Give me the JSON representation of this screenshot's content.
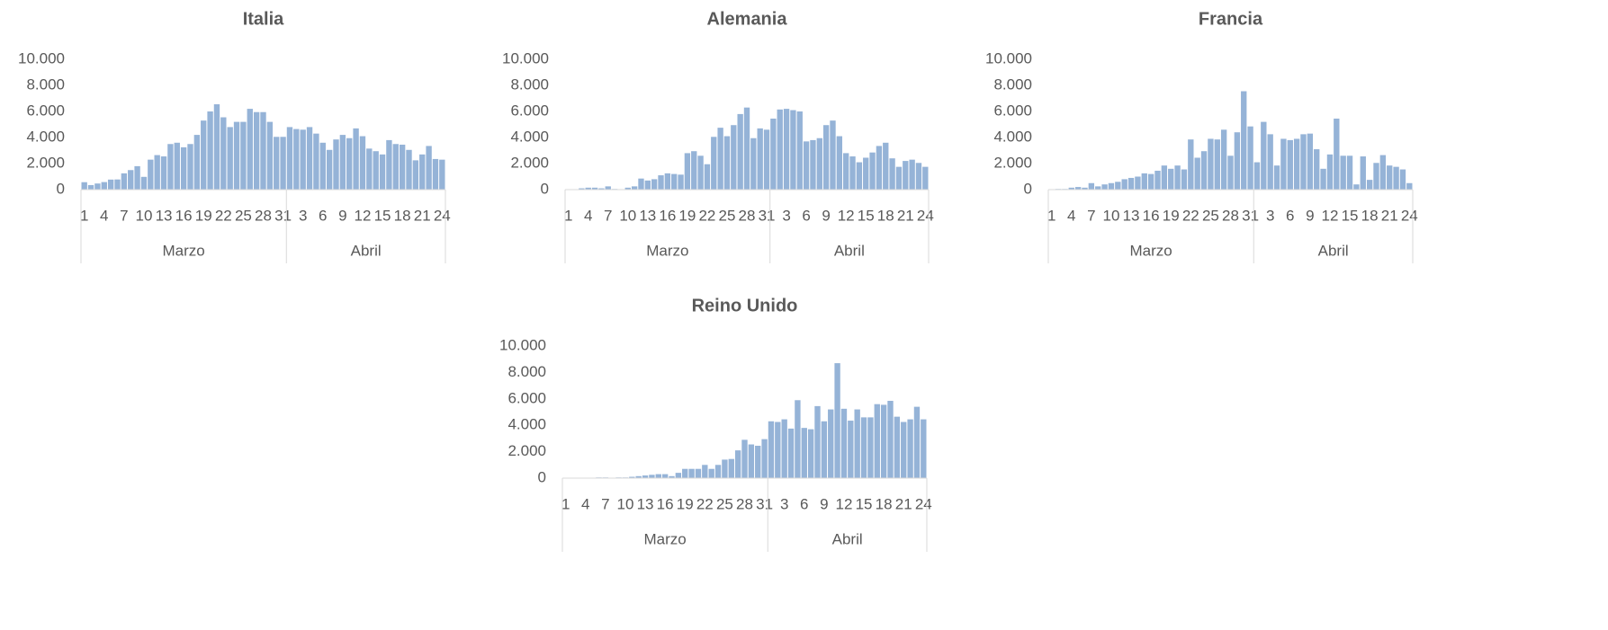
{
  "chart_data": [
    {
      "type": "bar",
      "title": "Italia",
      "color": "#95b3d7",
      "categories": [
        "1",
        null,
        null,
        "4",
        null,
        null,
        "7",
        null,
        null,
        "10",
        null,
        null,
        "13",
        null,
        null,
        "16",
        null,
        null,
        "19",
        null,
        null,
        "22",
        null,
        null,
        "25",
        null,
        null,
        "28",
        null,
        null,
        "31",
        null,
        null,
        "3",
        null,
        null,
        "6",
        null,
        null,
        "9",
        null,
        null,
        "12",
        null,
        null,
        "15",
        null,
        null,
        "18",
        null,
        null,
        "21",
        null,
        null,
        "24"
      ],
      "groups": [
        {
          "label": "Marzo",
          "span": 31
        },
        {
          "label": "Abril",
          "span": 24
        }
      ],
      "values": [
        570,
        350,
        470,
        580,
        770,
        780,
        1250,
        1500,
        1800,
        980,
        2300,
        2650,
        2550,
        3500,
        3600,
        3250,
        3500,
        4200,
        5300,
        6000,
        6550,
        5550,
        4800,
        5200,
        5200,
        6200,
        5950,
        5950,
        5200,
        4050,
        4050,
        4800,
        4650,
        4600,
        4800,
        4300,
        3600,
        3050,
        3850,
        4200,
        3950,
        4700,
        4100,
        3150,
        2950,
        2700,
        3800,
        3500,
        3450,
        3050,
        2250,
        2700,
        3350,
        2350,
        2300
      ],
      "ylim": [
        0,
        10000
      ],
      "yticks": [
        0,
        {
          "value": 2000,
          "label": "2.000"
        },
        {
          "value": 4000,
          "label": "4.000"
        },
        {
          "value": 6000,
          "label": "6.000"
        },
        {
          "value": 8000,
          "label": "8.000"
        },
        {
          "value": 10000,
          "label": "10.000"
        }
      ]
    },
    {
      "type": "bar",
      "title": "Alemania",
      "color": "#95b3d7",
      "categories": [
        "1",
        null,
        null,
        "4",
        null,
        null,
        "7",
        null,
        null,
        "10",
        null,
        null,
        "13",
        null,
        null,
        "16",
        null,
        null,
        "19",
        null,
        null,
        "22",
        null,
        null,
        "25",
        null,
        null,
        "28",
        null,
        null,
        "31",
        null,
        null,
        "3",
        null,
        null,
        "6",
        null,
        null,
        "9",
        null,
        null,
        "12",
        null,
        null,
        "15",
        null,
        null,
        "18",
        null,
        null,
        "21",
        null,
        null,
        "24"
      ],
      "groups": [
        {
          "label": "Marzo",
          "span": 31
        },
        {
          "label": "Abril",
          "span": 24
        }
      ],
      "values": [
        0,
        0,
        100,
        150,
        150,
        100,
        250,
        50,
        0,
        150,
        250,
        850,
        700,
        800,
        1100,
        1250,
        1200,
        1150,
        2800,
        2950,
        2600,
        1950,
        4050,
        4750,
        4100,
        4950,
        5800,
        6300,
        3950,
        4700,
        4600,
        5450,
        6150,
        6200,
        6100,
        6000,
        3700,
        3800,
        3950,
        4950,
        5300,
        4100,
        2800,
        2550,
        2100,
        2450,
        2850,
        3350,
        3600,
        2400,
        1750,
        2200,
        2300,
        2050,
        1750
      ],
      "ylim": [
        0,
        10000
      ],
      "yticks": [
        0,
        {
          "value": 2000,
          "label": "2.000"
        },
        {
          "value": 4000,
          "label": "4.000"
        },
        {
          "value": 6000,
          "label": "6.000"
        },
        {
          "value": 8000,
          "label": "8.000"
        },
        {
          "value": 10000,
          "label": "10.000"
        }
      ]
    },
    {
      "type": "bar",
      "title": "Francia",
      "color": "#95b3d7",
      "categories": [
        "1",
        null,
        null,
        "4",
        null,
        null,
        "7",
        null,
        null,
        "10",
        null,
        null,
        "13",
        null,
        null,
        "16",
        null,
        null,
        "19",
        null,
        null,
        "22",
        null,
        null,
        "25",
        null,
        null,
        "28",
        null,
        null,
        "31",
        null,
        null,
        "3",
        null,
        null,
        "6",
        null,
        null,
        "9",
        null,
        null,
        "12",
        null,
        null,
        "15",
        null,
        null,
        "18",
        null,
        null,
        "21",
        null,
        null,
        "24"
      ],
      "groups": [
        {
          "label": "Marzo",
          "span": 31
        },
        {
          "label": "Abril",
          "span": 24
        }
      ],
      "values": [
        0,
        50,
        50,
        150,
        200,
        150,
        500,
        250,
        400,
        500,
        600,
        800,
        900,
        1000,
        1250,
        1200,
        1450,
        1850,
        1600,
        1850,
        1550,
        3850,
        2450,
        2950,
        3900,
        3850,
        4600,
        2600,
        4400,
        7550,
        4850,
        2100,
        5200,
        4250,
        1850,
        3900,
        3800,
        3900,
        4250,
        4300,
        3100,
        1600,
        2700,
        5450,
        2600,
        2600,
        400,
        2550,
        750,
        2050,
        2650,
        1850,
        1750,
        1550,
        500
      ],
      "ylim": [
        0,
        10000
      ],
      "yticks": [
        0,
        {
          "value": 2000,
          "label": "2.000"
        },
        {
          "value": 4000,
          "label": "4.000"
        },
        {
          "value": 6000,
          "label": "6.000"
        },
        {
          "value": 8000,
          "label": "8.000"
        },
        {
          "value": 10000,
          "label": "10.000"
        }
      ]
    },
    {
      "type": "bar",
      "title": "Reino Unido",
      "color": "#95b3d7",
      "categories": [
        "1",
        null,
        null,
        "4",
        null,
        null,
        "7",
        null,
        null,
        "10",
        null,
        null,
        "13",
        null,
        null,
        "16",
        null,
        null,
        "19",
        null,
        null,
        "22",
        null,
        null,
        "25",
        null,
        null,
        "28",
        null,
        null,
        "31",
        null,
        null,
        "3",
        null,
        null,
        "6",
        null,
        null,
        "9",
        null,
        null,
        "12",
        null,
        null,
        "15",
        null,
        null,
        "18",
        null,
        null,
        "21",
        null,
        null,
        "24"
      ],
      "groups": [
        {
          "label": "Marzo",
          "span": 31
        },
        {
          "label": "Abril",
          "span": 24
        }
      ],
      "values": [
        0,
        0,
        0,
        0,
        0,
        50,
        50,
        0,
        50,
        50,
        100,
        150,
        200,
        250,
        300,
        300,
        150,
        400,
        700,
        700,
        700,
        1000,
        700,
        1000,
        1400,
        1450,
        2100,
        2900,
        2550,
        2450,
        2950,
        4300,
        4250,
        4450,
        3750,
        5900,
        3800,
        3700,
        5450,
        4300,
        5200,
        8700,
        5250,
        4350,
        5200,
        4600,
        4600,
        5600,
        5550,
        5850,
        4650,
        4250,
        4450,
        5400,
        4450
      ],
      "ylim": [
        0,
        10000
      ],
      "yticks": [
        0,
        {
          "value": 2000,
          "label": "2.000"
        },
        {
          "value": 4000,
          "label": "4.000"
        },
        {
          "value": 6000,
          "label": "6.000"
        },
        {
          "value": 8000,
          "label": "8.000"
        },
        {
          "value": 10000,
          "label": "10.000"
        }
      ]
    }
  ]
}
